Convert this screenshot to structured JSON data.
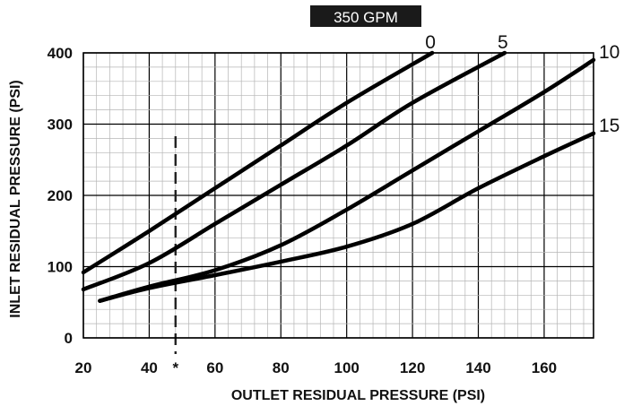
{
  "chart_data": {
    "type": "line",
    "title": "350 GPM",
    "xlabel": "OUTLET RESIDUAL PRESSURE (PSI)",
    "ylabel": "INLET RESIDUAL PRESSURE (PSI)",
    "xlim": [
      20,
      175
    ],
    "ylim": [
      0,
      400
    ],
    "x_ticks": [
      "20",
      "40",
      "60",
      "80",
      "100",
      "120",
      "140",
      "160"
    ],
    "y_ticks": [
      "0",
      "100",
      "200",
      "300",
      "400"
    ],
    "grid": true,
    "marker": {
      "x": 48,
      "label": "*"
    },
    "series": [
      {
        "name": "0",
        "x": [
          20,
          40,
          60,
          80,
          100,
          126
        ],
        "y": [
          92,
          150,
          210,
          270,
          330,
          400
        ]
      },
      {
        "name": "5",
        "x": [
          20,
          40,
          60,
          80,
          100,
          120,
          148
        ],
        "y": [
          68,
          105,
          160,
          215,
          270,
          330,
          400
        ]
      },
      {
        "name": "10",
        "x": [
          25,
          40,
          60,
          80,
          100,
          120,
          140,
          160,
          175
        ],
        "y": [
          52,
          72,
          95,
          130,
          180,
          235,
          290,
          345,
          390
        ]
      },
      {
        "name": "15",
        "x": [
          25,
          40,
          60,
          80,
          100,
          120,
          140,
          160,
          175
        ],
        "y": [
          52,
          70,
          88,
          107,
          128,
          160,
          210,
          255,
          287
        ]
      }
    ]
  }
}
